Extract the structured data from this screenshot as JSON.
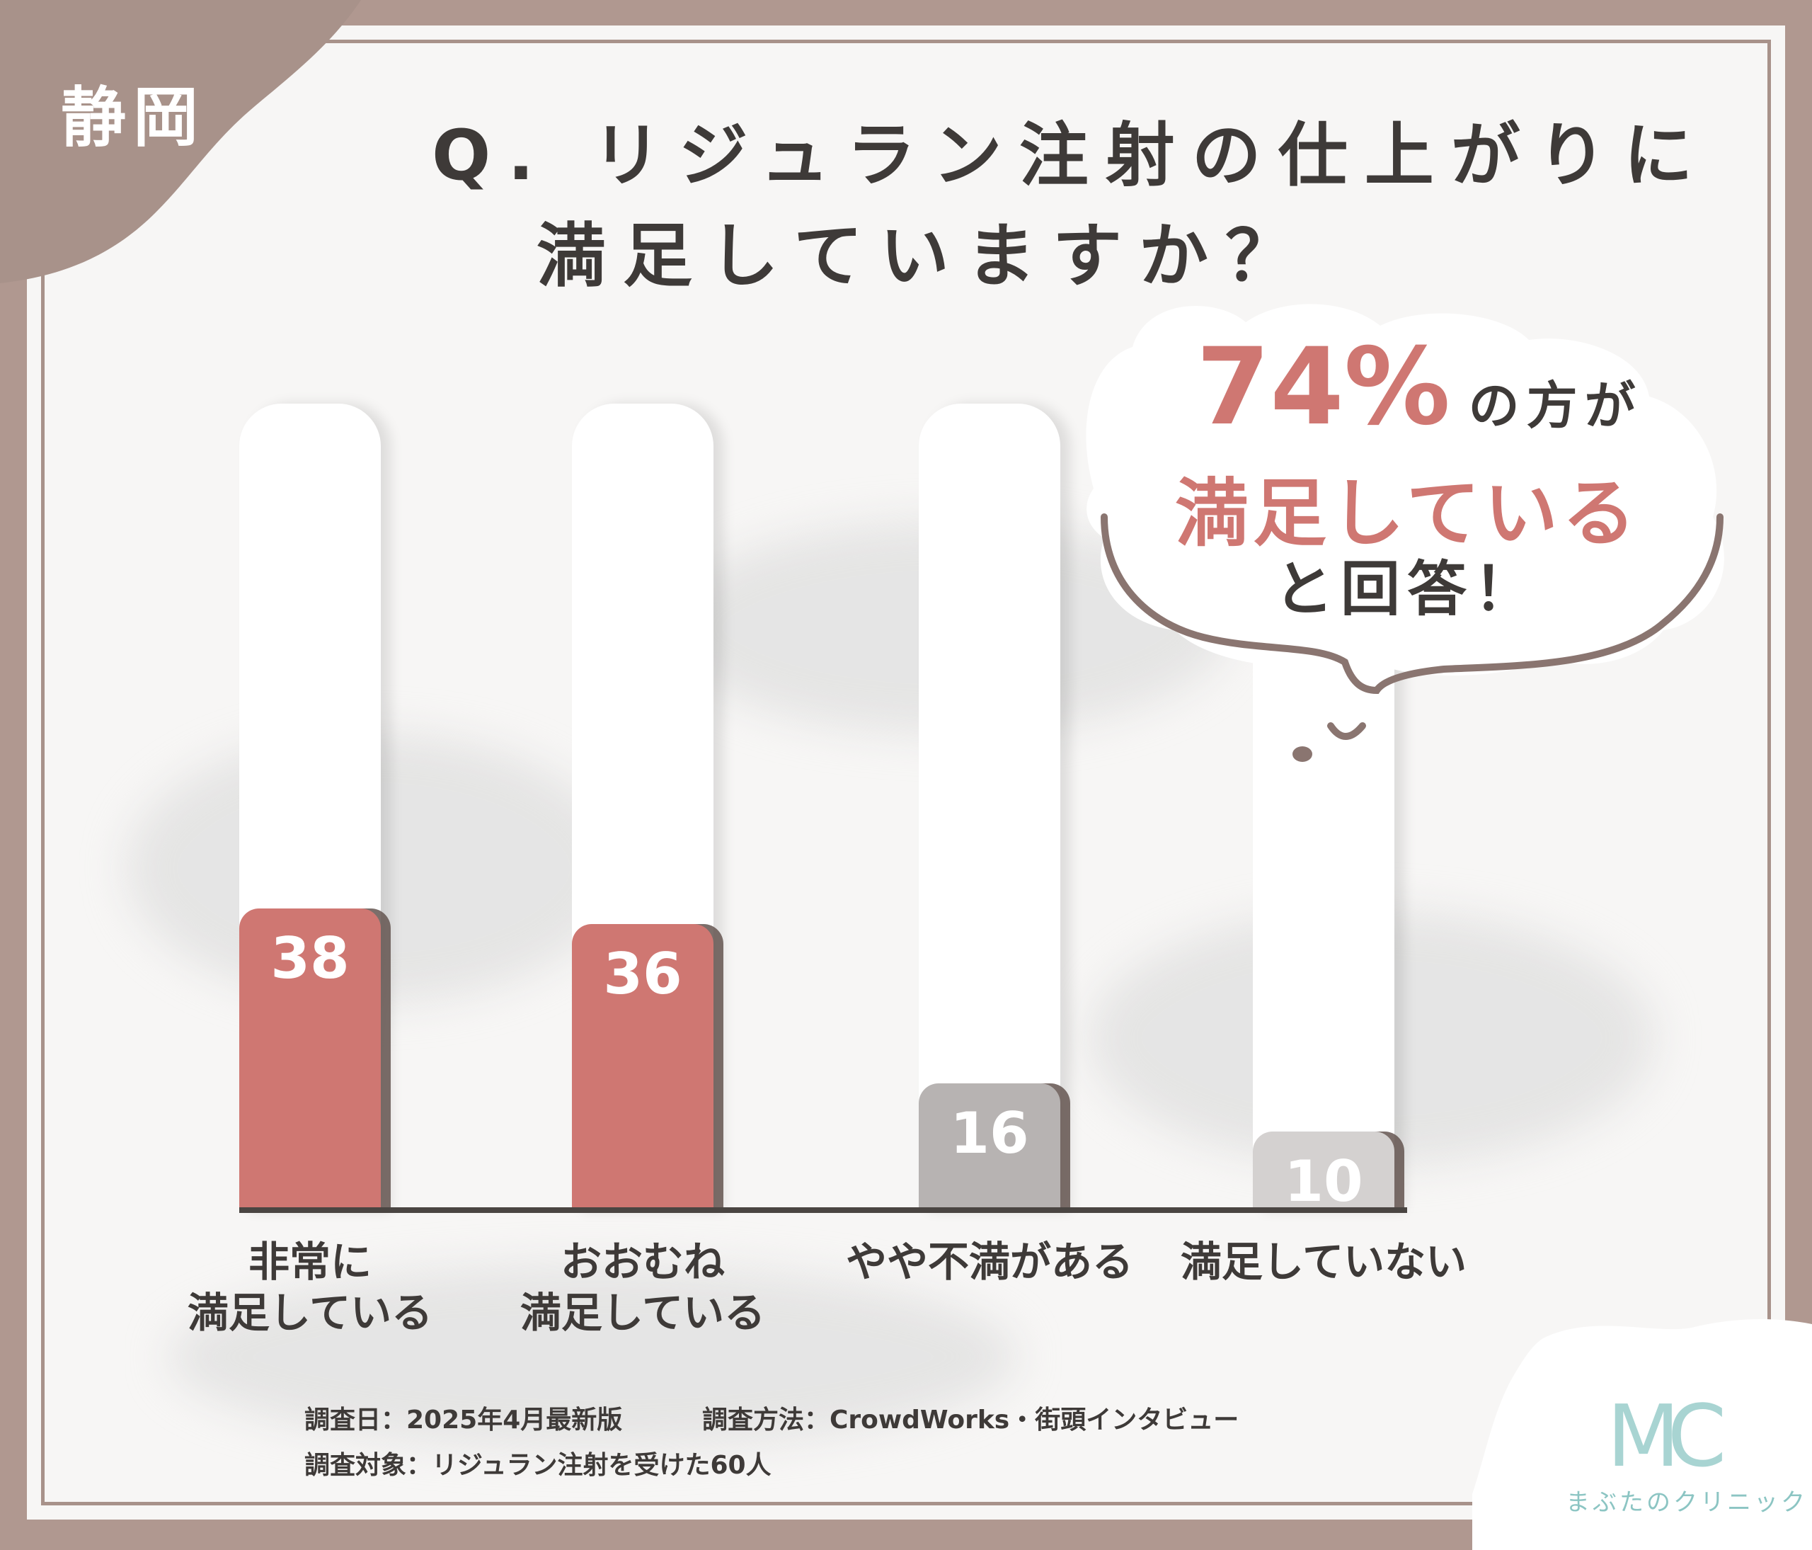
{
  "badge": "静岡",
  "title": {
    "line1": "Q. リジュラン注射の仕上がりに",
    "line2": "満足していますか？"
  },
  "callout": {
    "percent": "74%",
    "suffix": "の方が",
    "highlight": "満足している",
    "answer": "と回答！"
  },
  "chart_data": {
    "type": "bar",
    "categories": [
      "非常に\n満足している",
      "おおむね\n満足している",
      "やや不満がある",
      "満足していない"
    ],
    "values": [
      38,
      36,
      16,
      10
    ],
    "colors": [
      "#cf7772",
      "#cf7772",
      "#b7b3b2",
      "#d4d1d0"
    ],
    "ylim": [
      0,
      100
    ]
  },
  "footer": {
    "date": "調査日：2025年4月最新版",
    "method": "調査方法：CrowdWorks・街頭インタビュー",
    "target": "調査対象：リジュラン注射を受けた60人"
  },
  "logo": {
    "mark": "MC",
    "name": "まぶたのクリニック"
  }
}
